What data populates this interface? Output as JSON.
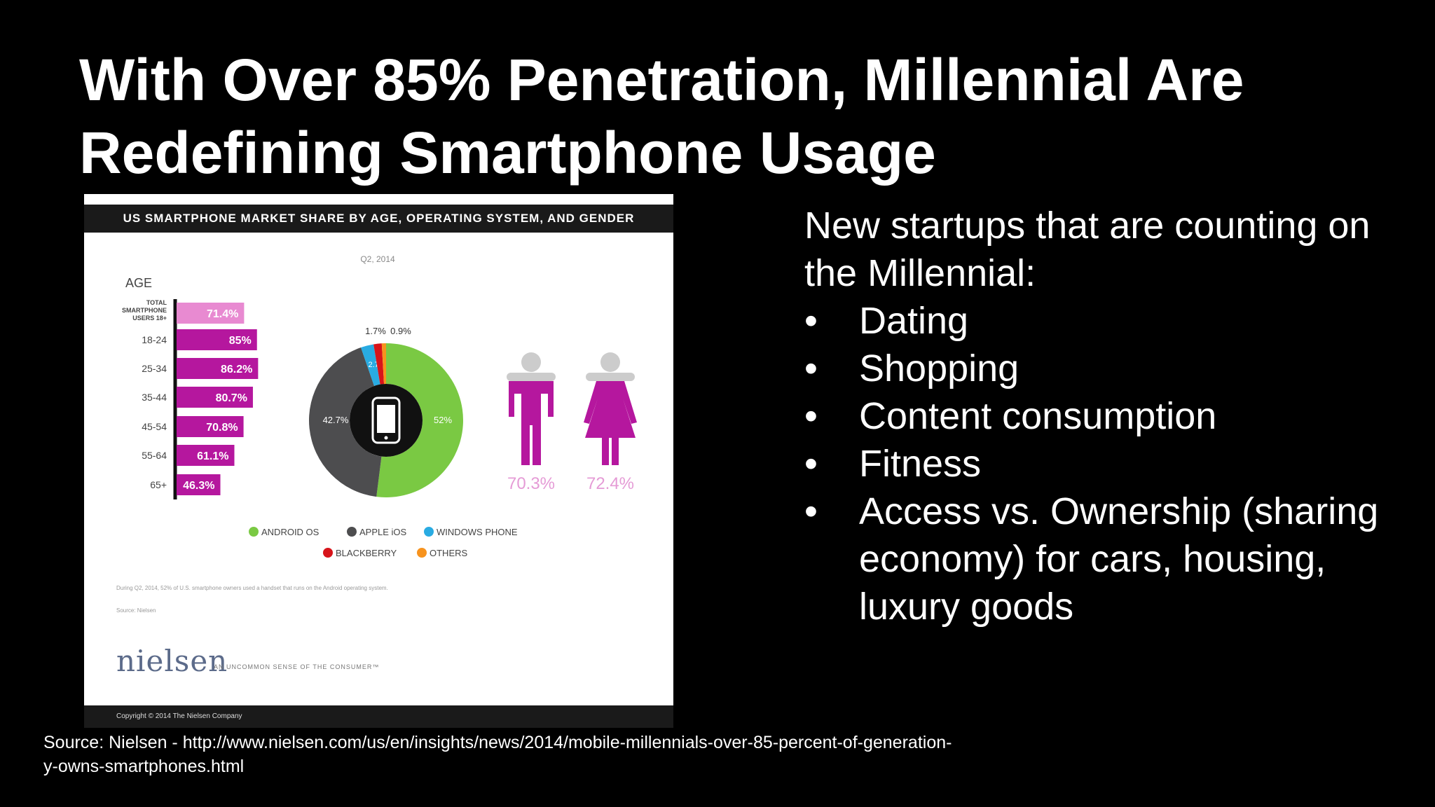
{
  "slide": {
    "title_line1": "With Over 85% Penetration, Millennial Are",
    "title_line2": "Redefining Smartphone Usage",
    "intro": "New startups that are counting on the Millennial:",
    "bullets": [
      "Dating",
      "Shopping",
      "Content consumption",
      "Fitness",
      "Access vs. Ownership (sharing economy) for cars, housing, luxury goods"
    ],
    "bullet_glyph": "•",
    "source": "Source: Nielsen - http://www.nielsen.com/us/en/insights/news/2014/mobile-millennials-over-85-percent-of-generation-y-owns-smartphones.html"
  },
  "infographic": {
    "header": "US SMARTPHONE MARKET SHARE BY AGE, OPERATING SYSTEM, AND GENDER",
    "period": "Q2, 2014",
    "note": "During Q2, 2014, 52% of U.S. smartphone owners used a handset that runs on the Android operating system.",
    "source_note": "Source: Nielsen",
    "logo": "nielsen",
    "tagline": "AN UNCOMMON SENSE OF THE CONSUMER™",
    "copyright": "Copyright © 2014 The Nielsen Company"
  },
  "chart_data": [
    {
      "type": "bar",
      "orientation": "horizontal",
      "title": "AGE",
      "categories": [
        "TOTAL SMARTPHONE USERS 18+",
        "18-24",
        "25-34",
        "35-44",
        "45-54",
        "55-64",
        "65+"
      ],
      "values": [
        71.4,
        85,
        86.2,
        80.7,
        70.8,
        61.1,
        46.3
      ],
      "labels": [
        "71.4%",
        "85%",
        "86.2%",
        "80.7%",
        "70.8%",
        "61.1%",
        "46.3%"
      ],
      "colors": [
        "#e88ad1",
        "#b5179e",
        "#b5179e",
        "#b5179e",
        "#b5179e",
        "#b5179e",
        "#b5179e"
      ]
    },
    {
      "type": "pie",
      "donut": true,
      "slices": [
        {
          "name": "ANDROID OS",
          "value": 52,
          "label": "52%",
          "color": "#7ac943"
        },
        {
          "name": "APPLE iOS",
          "value": 42.7,
          "label": "42.7%",
          "color": "#4d4d4f"
        },
        {
          "name": "WINDOWS PHONE",
          "value": 2.7,
          "label": "2.7%",
          "color": "#29abe2"
        },
        {
          "name": "BLACKBERRY",
          "value": 1.7,
          "label": "1.7%",
          "color": "#d7141a"
        },
        {
          "name": "OTHERS",
          "value": 0.9,
          "label": "0.9%",
          "color": "#f7931e"
        }
      ],
      "center_icon": "smartphone-icon"
    },
    {
      "type": "pictogram",
      "categories": [
        "Male",
        "Female"
      ],
      "values": [
        70.3,
        72.4
      ],
      "labels": [
        "70.3%",
        "72.4%"
      ],
      "icons": [
        "male-figure-icon",
        "female-figure-icon"
      ],
      "color": "#b5179e"
    }
  ]
}
